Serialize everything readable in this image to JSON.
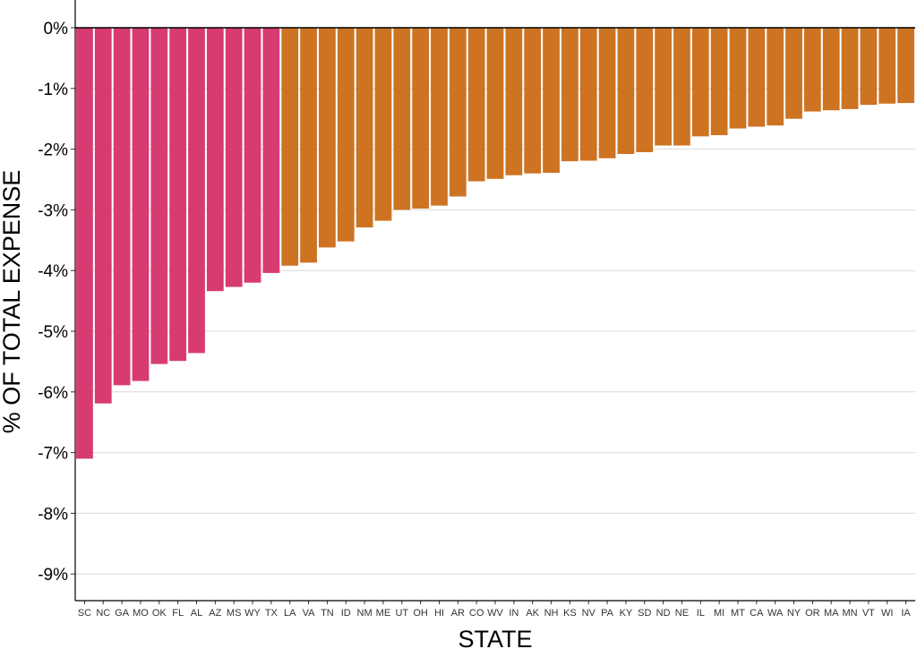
{
  "chart_data": {
    "type": "bar",
    "xlabel": "STATE",
    "ylabel": "% OF TOTAL EXPENSE",
    "ylim": [
      -9.5,
      0.2
    ],
    "yticks": [
      0,
      -1,
      -2,
      -3,
      -4,
      -5,
      -6,
      -7,
      -8,
      -9
    ],
    "ytick_labels": [
      "0%",
      "-1%",
      "-2%",
      "-3%",
      "-4%",
      "-5%",
      "-6%",
      "-7%",
      "-8%",
      "-9%"
    ],
    "grid": "horizontal",
    "colors": {
      "group_1": "#d83a72",
      "group_2": "#cd7322",
      "zero_line": "#000000",
      "grid": "#d9d9d9"
    },
    "categories": [
      "SC",
      "NC",
      "GA",
      "MO",
      "OK",
      "FL",
      "AL",
      "AZ",
      "MS",
      "WY",
      "TX",
      "LA",
      "VA",
      "TN",
      "ID",
      "NM",
      "ME",
      "UT",
      "OH",
      "HI",
      "AR",
      "CO",
      "WV",
      "IN",
      "AK",
      "NH",
      "KS",
      "NV",
      "PA",
      "KY",
      "SD",
      "ND",
      "NE",
      "IL",
      "MI",
      "MT",
      "CA",
      "WA",
      "NY",
      "OR",
      "MA",
      "MN",
      "VT",
      "WI",
      "IA"
    ],
    "values": [
      -7.1,
      -6.19,
      -5.89,
      -5.82,
      -5.54,
      -5.49,
      -5.36,
      -4.34,
      -4.27,
      -4.2,
      -4.04,
      -3.92,
      -3.87,
      -3.62,
      -3.52,
      -3.29,
      -3.18,
      -3.0,
      -2.98,
      -2.93,
      -2.78,
      -2.53,
      -2.49,
      -2.43,
      -2.4,
      -2.39,
      -2.2,
      -2.19,
      -2.15,
      -2.08,
      -2.05,
      -1.94,
      -1.94,
      -1.79,
      -1.77,
      -1.66,
      -1.63,
      -1.61,
      -1.5,
      -1.38,
      -1.36,
      -1.34,
      -1.27,
      -1.25,
      -1.24
    ],
    "groups": [
      1,
      1,
      1,
      1,
      1,
      1,
      1,
      1,
      1,
      1,
      1,
      2,
      2,
      2,
      2,
      2,
      2,
      2,
      2,
      2,
      2,
      2,
      2,
      2,
      2,
      2,
      2,
      2,
      2,
      2,
      2,
      2,
      2,
      2,
      2,
      2,
      2,
      2,
      2,
      2,
      2,
      2,
      2,
      2,
      2
    ]
  }
}
